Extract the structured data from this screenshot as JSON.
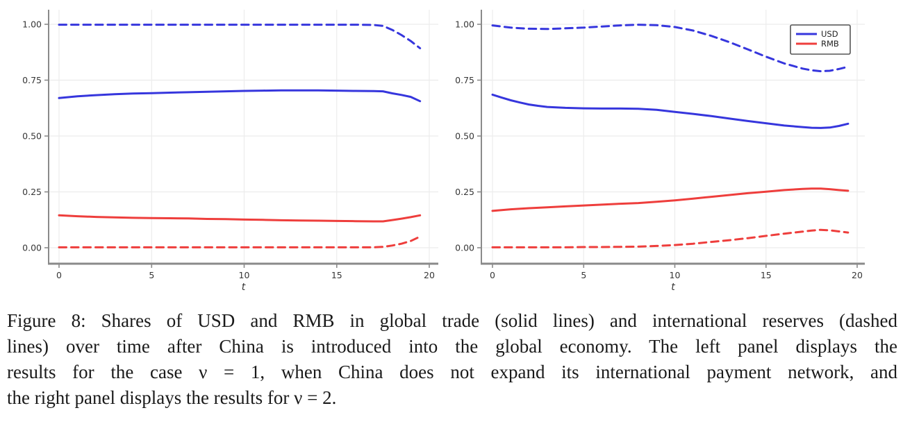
{
  "figure": {
    "label": "Figure 8",
    "caption_lines": [
      "Figure 8: Shares of USD and RMB in global trade (solid lines) and international reserves (dashed",
      "lines) over time after China is introduced into the global economy.  The left panel displays the",
      "results for the case ν = 1, when China does not expand its international payment network, and",
      "the right panel displays the results for ν = 2."
    ],
    "colors": {
      "usd": "#3636dd",
      "rmb": "#ee3e3c",
      "axis": "#8a8a8a",
      "grid": "#ececec",
      "tick_label": "#363636",
      "legend_border": "#555555"
    }
  },
  "chart_data": [
    {
      "type": "line",
      "panel": "left",
      "title": "",
      "xlabel": "t",
      "ylabel": "",
      "xlim": [
        0,
        20
      ],
      "ylim": [
        0,
        1
      ],
      "xticks": [
        0,
        5,
        10,
        15,
        20
      ],
      "xtick_labels": [
        "0",
        "5",
        "10",
        "15",
        "20"
      ],
      "yticks": [
        0,
        0.25,
        0.5,
        0.75,
        1
      ],
      "ytick_labels": [
        "0.00",
        "0.25",
        "0.50",
        "0.75",
        "1.00"
      ],
      "grid": true,
      "legend": null,
      "series": [
        {
          "id": "usd-reserves",
          "name": "USD (reserves)",
          "style": "dashed",
          "color": "#3636dd",
          "x": [
            0,
            2,
            4,
            6,
            8,
            10,
            12,
            14,
            16,
            17,
            17.5,
            18,
            18.5,
            19,
            19.5
          ],
          "y": [
            0.998,
            0.998,
            0.998,
            0.998,
            0.998,
            0.998,
            0.998,
            0.998,
            0.998,
            0.997,
            0.993,
            0.975,
            0.952,
            0.925,
            0.893
          ]
        },
        {
          "id": "usd-trade",
          "name": "USD (trade)",
          "style": "solid",
          "color": "#3636dd",
          "x": [
            0,
            1,
            2,
            3,
            4,
            5,
            6,
            7,
            8,
            9,
            10,
            11,
            12,
            13,
            14,
            15,
            16,
            17,
            17.5,
            18,
            18.5,
            19,
            19.5
          ],
          "y": [
            0.67,
            0.678,
            0.683,
            0.687,
            0.69,
            0.692,
            0.694,
            0.696,
            0.698,
            0.7,
            0.702,
            0.703,
            0.704,
            0.704,
            0.704,
            0.703,
            0.702,
            0.701,
            0.7,
            0.691,
            0.684,
            0.675,
            0.656
          ]
        },
        {
          "id": "rmb-trade",
          "name": "RMB (trade)",
          "style": "solid",
          "color": "#ee3e3c",
          "x": [
            0,
            1,
            2,
            3,
            4,
            5,
            6,
            7,
            8,
            9,
            10,
            11,
            12,
            13,
            14,
            15,
            16,
            17,
            17.5,
            18,
            18.5,
            19,
            19.5
          ],
          "y": [
            0.145,
            0.141,
            0.138,
            0.136,
            0.134,
            0.133,
            0.132,
            0.131,
            0.129,
            0.128,
            0.126,
            0.125,
            0.123,
            0.122,
            0.121,
            0.12,
            0.119,
            0.118,
            0.118,
            0.124,
            0.13,
            0.137,
            0.145
          ]
        },
        {
          "id": "rmb-reserves",
          "name": "RMB (reserves)",
          "style": "dashed",
          "color": "#ee3e3c",
          "x": [
            0,
            2,
            4,
            6,
            8,
            10,
            12,
            14,
            16,
            17,
            17.5,
            18,
            18.5,
            19,
            19.5
          ],
          "y": [
            0.002,
            0.002,
            0.002,
            0.002,
            0.002,
            0.002,
            0.002,
            0.002,
            0.002,
            0.002,
            0.004,
            0.01,
            0.018,
            0.03,
            0.05
          ]
        }
      ]
    },
    {
      "type": "line",
      "panel": "right",
      "title": "",
      "xlabel": "t",
      "ylabel": "",
      "xlim": [
        0,
        20
      ],
      "ylim": [
        0,
        1
      ],
      "xticks": [
        0,
        5,
        10,
        15,
        20
      ],
      "xtick_labels": [
        "0",
        "5",
        "10",
        "15",
        "20"
      ],
      "yticks": [
        0,
        0.25,
        0.5,
        0.75,
        1
      ],
      "ytick_labels": [
        "0.00",
        "0.25",
        "0.50",
        "0.75",
        "1.00"
      ],
      "grid": true,
      "legend": {
        "position": "top-right",
        "entries": [
          {
            "label": "USD",
            "color": "#3636dd"
          },
          {
            "label": "RMB",
            "color": "#ee3e3c"
          }
        ]
      },
      "series": [
        {
          "id": "usd-reserves",
          "name": "USD (reserves)",
          "style": "dashed",
          "color": "#3636dd",
          "x": [
            0,
            1,
            2,
            3,
            4,
            5,
            6,
            7,
            8,
            9,
            10,
            11,
            12,
            13,
            14,
            15,
            16,
            17,
            17.5,
            18,
            18.5,
            19,
            19.5
          ],
          "y": [
            0.995,
            0.985,
            0.98,
            0.979,
            0.982,
            0.985,
            0.99,
            0.995,
            0.998,
            0.996,
            0.988,
            0.972,
            0.948,
            0.92,
            0.888,
            0.855,
            0.825,
            0.802,
            0.794,
            0.79,
            0.792,
            0.8,
            0.81
          ]
        },
        {
          "id": "usd-trade",
          "name": "USD (trade)",
          "style": "solid",
          "color": "#3636dd",
          "x": [
            0,
            0.5,
            1,
            1.5,
            2,
            2.5,
            3,
            4,
            5,
            6,
            7,
            8,
            9,
            10,
            11,
            12,
            13,
            14,
            15,
            16,
            17,
            17.5,
            18,
            18.5,
            19,
            19.5
          ],
          "y": [
            0.685,
            0.672,
            0.66,
            0.65,
            0.641,
            0.635,
            0.63,
            0.626,
            0.624,
            0.623,
            0.623,
            0.622,
            0.617,
            0.608,
            0.599,
            0.589,
            0.578,
            0.567,
            0.557,
            0.547,
            0.54,
            0.537,
            0.536,
            0.538,
            0.545,
            0.555
          ]
        },
        {
          "id": "rmb-trade",
          "name": "RMB (trade)",
          "style": "solid",
          "color": "#ee3e3c",
          "x": [
            0,
            1,
            2,
            3,
            4,
            5,
            6,
            7,
            8,
            9,
            10,
            11,
            12,
            13,
            14,
            15,
            16,
            17,
            17.5,
            18,
            18.5,
            19,
            19.5
          ],
          "y": [
            0.165,
            0.172,
            0.177,
            0.181,
            0.185,
            0.189,
            0.193,
            0.197,
            0.2,
            0.206,
            0.212,
            0.22,
            0.228,
            0.236,
            0.244,
            0.251,
            0.258,
            0.263,
            0.265,
            0.265,
            0.262,
            0.258,
            0.255
          ]
        },
        {
          "id": "rmb-reserves",
          "name": "RMB (reserves)",
          "style": "dashed",
          "color": "#ee3e3c",
          "x": [
            0,
            1,
            2,
            3,
            4,
            5,
            6,
            7,
            8,
            9,
            10,
            11,
            12,
            13,
            14,
            15,
            16,
            17,
            17.5,
            18,
            18.5,
            19,
            19.5
          ],
          "y": [
            0.002,
            0.002,
            0.002,
            0.002,
            0.002,
            0.003,
            0.003,
            0.004,
            0.005,
            0.008,
            0.012,
            0.018,
            0.026,
            0.034,
            0.043,
            0.053,
            0.063,
            0.072,
            0.077,
            0.08,
            0.078,
            0.073,
            0.068
          ]
        }
      ]
    }
  ]
}
